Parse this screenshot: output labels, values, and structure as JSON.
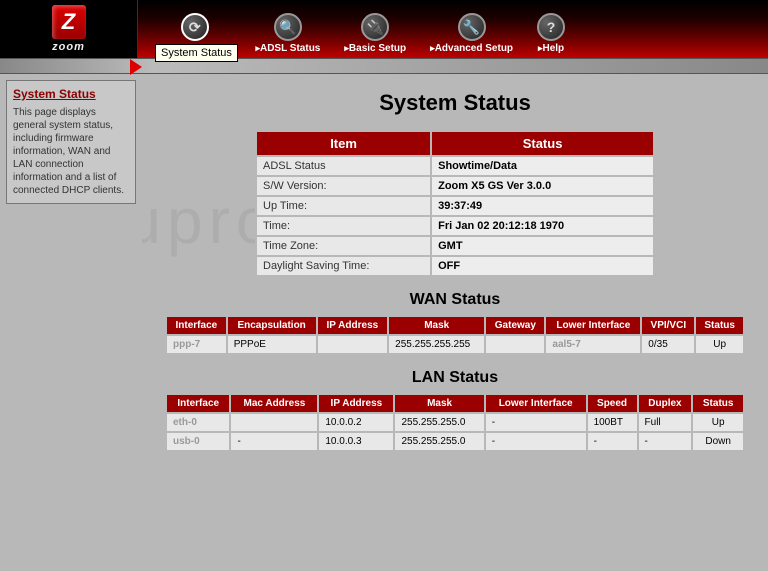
{
  "brand": {
    "letter": "Z",
    "name": "zoom"
  },
  "nav": [
    {
      "label": "System Status",
      "icon": "⟳"
    },
    {
      "label": "ADSL Status",
      "icon": "🔍"
    },
    {
      "label": "Basic Setup",
      "icon": "🔌"
    },
    {
      "label": "Advanced Setup",
      "icon": "🔧"
    },
    {
      "label": "Help",
      "icon": "?"
    }
  ],
  "tooltip": "System Status",
  "help": {
    "title": "System Status",
    "body": "This page displays general system status, including firmware information, WAN and LAN connection information and a list of connected DHCP clients."
  },
  "page_title": "System Status",
  "watermark": "setuproute",
  "sys": {
    "headers": [
      "Item",
      "Status"
    ],
    "rows": [
      [
        "ADSL Status",
        "Showtime/Data"
      ],
      [
        "S/W Version:",
        "Zoom X5 GS Ver 3.0.0"
      ],
      [
        "Up Time:",
        "39:37:49"
      ],
      [
        "Time:",
        "Fri Jan 02 20:12:18 1970"
      ],
      [
        "Time Zone:",
        "GMT"
      ],
      [
        "Daylight Saving Time:",
        "OFF"
      ]
    ]
  },
  "wan": {
    "title": "WAN Status",
    "headers": [
      "Interface",
      "Encapsulation",
      "IP Address",
      "Mask",
      "Gateway",
      "Lower Interface",
      "VPI/VCI",
      "Status"
    ],
    "rows": [
      [
        "ppp-7",
        "PPPoE",
        "",
        "255.255.255.255",
        "",
        "aal5-7",
        "0/35",
        "Up"
      ]
    ]
  },
  "lan": {
    "title": "LAN Status",
    "headers": [
      "Interface",
      "Mac Address",
      "IP Address",
      "Mask",
      "Lower Interface",
      "Speed",
      "Duplex",
      "Status"
    ],
    "rows": [
      [
        "eth-0",
        "",
        "10.0.0.2",
        "255.255.255.0",
        "-",
        "100BT",
        "Full",
        "Up"
      ],
      [
        "usb-0",
        "-",
        "10.0.0.3",
        "255.255.255.0",
        "-",
        "-",
        "-",
        "Down"
      ]
    ]
  }
}
